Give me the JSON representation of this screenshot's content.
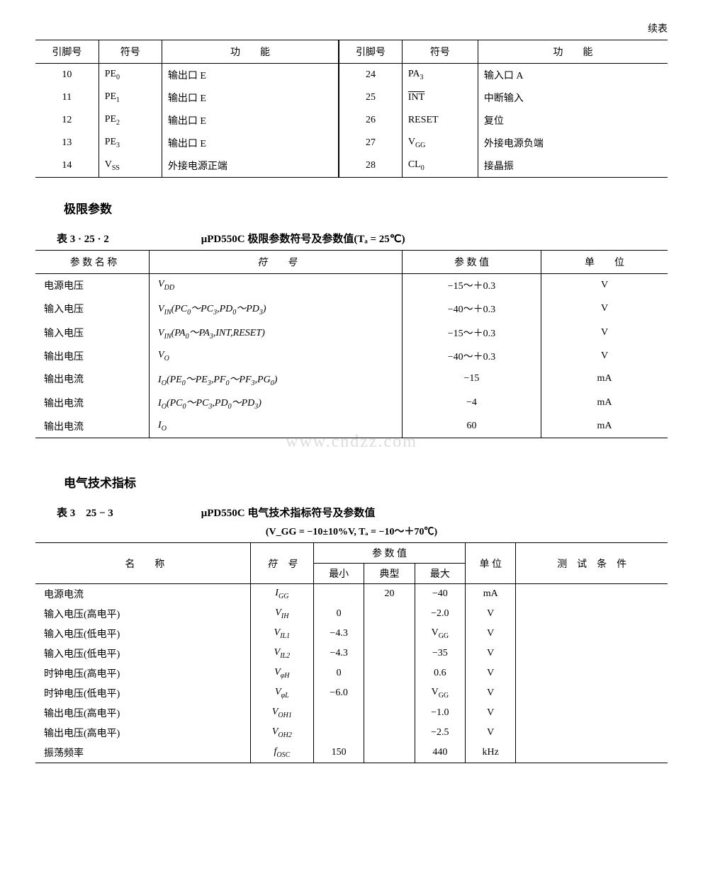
{
  "cont_label": "续表",
  "table1": {
    "headers": [
      "引脚号",
      "符号",
      "功　　能",
      "引脚号",
      "符号",
      "功　　能"
    ],
    "rows": [
      [
        "10",
        "PE₀",
        "输出口 E",
        "24",
        "PA₃",
        "输入口 A"
      ],
      [
        "11",
        "PE₁",
        "输出口 E",
        "25",
        "INT",
        "中断输入"
      ],
      [
        "12",
        "PE₂",
        "输出口 E",
        "26",
        "RESET",
        "复位"
      ],
      [
        "13",
        "PE₃",
        "输出口 E",
        "27",
        "V_GG",
        "外接电源负端"
      ],
      [
        "14",
        "V_SS",
        "外接电源正端",
        "28",
        "CL₀",
        "接晶振"
      ]
    ]
  },
  "section1_title": "极限参数",
  "table2": {
    "number": "表 3 · 25 · 2",
    "title": "μPD550C 极限参数符号及参数值(Tₐ = 25℃)",
    "headers": [
      "参 数 名 称",
      "符　　号",
      "参 数 值",
      "单　　位"
    ],
    "rows": [
      [
        "电源电压",
        "V_DD",
        "−15～＋0.3",
        "V"
      ],
      [
        "输入电压",
        "V_IN(PC₀～PC₃,PD₀～PD₃)",
        "−40～＋0.3",
        "V"
      ],
      [
        "输入电压",
        "V_IN(PA₀～PA₃,INT,RESET)",
        "−15～＋0.3",
        "V"
      ],
      [
        "输出电压",
        "V_O",
        "−40～＋0.3",
        "V"
      ],
      [
        "输出电流",
        "I_O(PE₀～PE₃,PF₀～PF₃,PG₀)",
        "−15",
        "mA"
      ],
      [
        "输出电流",
        "I_O(PC₀～PC₃,PD₀～PD₃)",
        "−4",
        "mA"
      ],
      [
        "输出电流",
        "I_O",
        "60",
        "mA"
      ]
    ]
  },
  "watermark": "www.cndzz.com",
  "section2_title": "电气技术指标",
  "table3": {
    "number": "表 3　25 − 3",
    "title": "μPD550C 电气技术指标符号及参数值",
    "subtitle": "(V_GG = −10±10%V, Tₐ = −10～＋70℃)",
    "headers": {
      "name": "名　　称",
      "symbol": "符　号",
      "param": "参 数 值",
      "min": "最小",
      "typ": "典型",
      "max": "最大",
      "unit": "单 位",
      "cond": "测　试　条　件"
    },
    "rows": [
      [
        "电源电流",
        "I_GG",
        "",
        "20",
        "−40",
        "mA",
        ""
      ],
      [
        "输入电压(高电平)",
        "V_IH",
        "0",
        "",
        "−2.0",
        "V",
        ""
      ],
      [
        "输入电压(低电平)",
        "V_IL1",
        "−4.3",
        "",
        "V_GG",
        "V",
        ""
      ],
      [
        "输入电压(低电平)",
        "V_IL2",
        "−4.3",
        "",
        "−35",
        "V",
        ""
      ],
      [
        "时钟电压(高电平)",
        "V_φH",
        "0",
        "",
        "0.6",
        "V",
        ""
      ],
      [
        "时钟电压(低电平)",
        "V_φL",
        "−6.0",
        "",
        "V_GG",
        "V",
        ""
      ],
      [
        "输出电压(高电平)",
        "V_OH1",
        "",
        "",
        "−1.0",
        "V",
        ""
      ],
      [
        "输出电压(高电平)",
        "V_OH2",
        "",
        "",
        "−2.5",
        "V",
        ""
      ],
      [
        "振荡频率",
        "f_OSC",
        "150",
        "",
        "440",
        "kHz",
        ""
      ]
    ]
  }
}
